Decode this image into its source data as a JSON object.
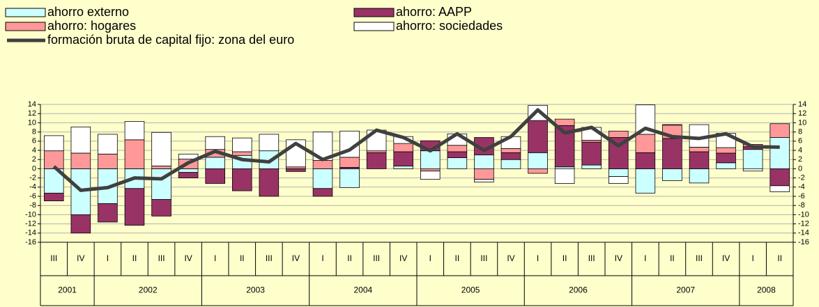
{
  "chart_data": {
    "type": "bar",
    "stacked": true,
    "years": [
      {
        "label": "2001",
        "quarters": [
          "III",
          "IV"
        ]
      },
      {
        "label": "2002",
        "quarters": [
          "I",
          "II",
          "III",
          "IV"
        ]
      },
      {
        "label": "2003",
        "quarters": [
          "I",
          "II",
          "III",
          "IV"
        ]
      },
      {
        "label": "2004",
        "quarters": [
          "I",
          "II",
          "III",
          "IV"
        ]
      },
      {
        "label": "2005",
        "quarters": [
          "I",
          "II",
          "III",
          "IV"
        ]
      },
      {
        "label": "2006",
        "quarters": [
          "I",
          "II",
          "III",
          "IV"
        ]
      },
      {
        "label": "2007",
        "quarters": [
          "I",
          "II",
          "III",
          "IV"
        ]
      },
      {
        "label": "2008",
        "quarters": [
          "I",
          "II"
        ]
      }
    ],
    "series": [
      {
        "name": "ahorro externo",
        "color": "#ccffff",
        "values": [
          -5.3,
          -10,
          -7.6,
          -4.3,
          -6.7,
          -0.8,
          2.5,
          2.9,
          3.9,
          0,
          -4.3,
          -4.1,
          0,
          0.6,
          3.9,
          2.4,
          3,
          2,
          3.5,
          0.4,
          0.8,
          -1.7,
          -5.3,
          -2.6,
          -3.1,
          1.3,
          4.2,
          6.8
        ]
      },
      {
        "name": "ahorro: AAPP",
        "color": "#993366",
        "values": [
          -1.7,
          -4,
          -4,
          -8,
          -3.6,
          -1.2,
          -3.2,
          -4.8,
          -6,
          -0.6,
          -1.7,
          0.3,
          3.5,
          3.1,
          2.2,
          1.3,
          3.8,
          1.5,
          7,
          9,
          5,
          6.8,
          3.5,
          6.6,
          3.7,
          2.1,
          0.6,
          -3.7
        ]
      },
      {
        "name": "ahorro: hogares",
        "color": "#ff9999",
        "values": [
          3.9,
          3.4,
          3.2,
          6.3,
          0.6,
          2.1,
          1.7,
          0.8,
          0,
          0.4,
          1.8,
          2.2,
          0.4,
          1.8,
          -0.5,
          1.4,
          -2.3,
          0.9,
          -1,
          1.4,
          0.4,
          1.4,
          4,
          2.9,
          1,
          1.2,
          0.5,
          3
        ]
      },
      {
        "name": "ahorro: sociedades",
        "color": "#ffffff",
        "values": [
          3.3,
          5.7,
          4.3,
          4,
          7.3,
          1.1,
          2.8,
          3,
          3.6,
          5.9,
          6.2,
          5.7,
          4.5,
          1.5,
          -1.8,
          2.5,
          -0.6,
          2.6,
          3.3,
          -3.2,
          2.8,
          -1.5,
          6.4,
          0.1,
          4.9,
          3.1,
          -0.5,
          -1.3
        ]
      },
      {
        "name": "formación bruta de capital fijo: zona del euro",
        "type": "line",
        "color": "#404040",
        "values": [
          0.5,
          -4.7,
          -4.1,
          -2,
          -2.2,
          1.3,
          3.8,
          2,
          1.5,
          5.5,
          2,
          4.1,
          8.4,
          6.8,
          3.9,
          7.6,
          4,
          7,
          12.8,
          7.8,
          9,
          5,
          8.8,
          7,
          6.6,
          7.6,
          4.8,
          4.7
        ]
      }
    ],
    "ylim": [
      -16,
      14
    ],
    "yticks": [
      -16,
      -14,
      -12,
      -10,
      -8,
      -6,
      -4,
      -2,
      0,
      2,
      4,
      6,
      8,
      10,
      12,
      14
    ],
    "grid": true
  }
}
